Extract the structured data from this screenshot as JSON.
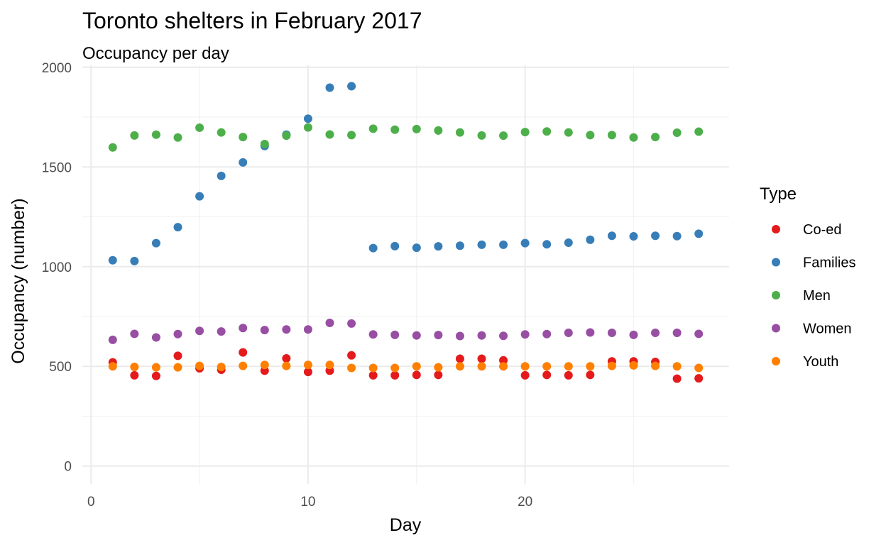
{
  "chart_data": {
    "type": "scatter",
    "title": "Toronto shelters in February 2017",
    "subtitle": "Occupancy per day",
    "xlabel": "Day",
    "ylabel": "Occupancy (number)",
    "xlim": [
      -0.4,
      29.4
    ],
    "ylim": [
      -90,
      2010
    ],
    "x_ticks": [
      0,
      10,
      20
    ],
    "x_tick_labels": [
      "0",
      "10",
      "20"
    ],
    "y_ticks": [
      0,
      500,
      1000,
      1500,
      2000
    ],
    "y_tick_labels": [
      "0",
      "500",
      "1000",
      "1500",
      "2000"
    ],
    "grid": true,
    "legend": {
      "title": "Type",
      "position": "right"
    },
    "x": [
      1,
      2,
      3,
      4,
      5,
      6,
      7,
      8,
      9,
      10,
      11,
      12,
      13,
      14,
      15,
      16,
      17,
      18,
      19,
      20,
      21,
      22,
      23,
      24,
      25,
      26,
      27,
      28
    ],
    "series": [
      {
        "name": "Co-ed",
        "color": "#e41a1c",
        "values": [
          520,
          455,
          452,
          553,
          490,
          483,
          570,
          478,
          540,
          472,
          478,
          555,
          455,
          455,
          457,
          457,
          538,
          538,
          530,
          455,
          457,
          455,
          457,
          525,
          525,
          522,
          438,
          440
        ]
      },
      {
        "name": "Families",
        "color": "#377eb8",
        "values": [
          1032,
          1028,
          1118,
          1198,
          1353,
          1455,
          1523,
          1605,
          1662,
          1742,
          1898,
          1905,
          1093,
          1103,
          1095,
          1102,
          1105,
          1110,
          1110,
          1118,
          1112,
          1120,
          1135,
          1155,
          1152,
          1155,
          1153,
          1165
        ]
      },
      {
        "name": "Men",
        "color": "#4daf4a",
        "values": [
          1598,
          1658,
          1662,
          1648,
          1697,
          1673,
          1650,
          1615,
          1657,
          1698,
          1663,
          1660,
          1692,
          1687,
          1690,
          1683,
          1673,
          1658,
          1657,
          1675,
          1678,
          1673,
          1660,
          1660,
          1648,
          1650,
          1672,
          1677
        ]
      },
      {
        "name": "Women",
        "color": "#984ea3",
        "values": [
          633,
          663,
          645,
          662,
          678,
          675,
          692,
          682,
          685,
          685,
          718,
          715,
          660,
          658,
          655,
          657,
          652,
          655,
          653,
          660,
          662,
          668,
          670,
          668,
          658,
          668,
          668,
          663
        ]
      },
      {
        "name": "Youth",
        "color": "#ff7f00",
        "values": [
          500,
          497,
          495,
          495,
          502,
          497,
          502,
          507,
          502,
          507,
          507,
          492,
          492,
          492,
          500,
          495,
          500,
          500,
          500,
          500,
          500,
          500,
          500,
          502,
          505,
          502,
          500,
          492
        ]
      }
    ]
  }
}
